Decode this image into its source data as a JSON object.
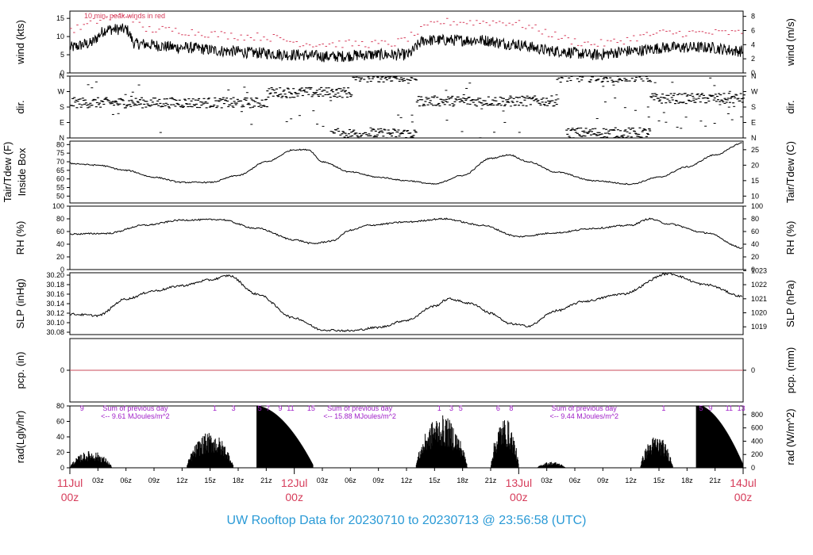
{
  "colors": {
    "line": "#000000",
    "peak": "#d63c5a",
    "zero_line": "#c84b5a",
    "date_label": "#d63c5a",
    "annotation": "#a020c8",
    "footer": "#2a9ad6"
  },
  "footer": {
    "title": "UW Rooftop Data for 20230710  to  20230713 @ 23:56:58  (UTC)"
  },
  "chart_data": {
    "type": "line",
    "x_range_hours": [
      0,
      72
    ],
    "x_ticks": {
      "major": [
        {
          "hour": 0,
          "date": "11Jul",
          "time": "00z"
        },
        {
          "hour": 24,
          "date": "12Jul",
          "time": "00z"
        },
        {
          "hour": 48,
          "date": "13Jul",
          "time": "00z"
        },
        {
          "hour": 72,
          "date": "14Jul",
          "time": "00z"
        }
      ],
      "minor_labels": [
        "03z",
        "06z",
        "09z",
        "12z",
        "15z",
        "18z",
        "21z"
      ]
    },
    "panels": [
      {
        "id": "wind",
        "left_label": "wind (kts)",
        "right_label": "wind (m/s)",
        "ylim": [
          0,
          17
        ],
        "left_ticks": [
          "0",
          "5",
          "10",
          "15"
        ],
        "left_tick_values": [
          0,
          5,
          10,
          15
        ],
        "right_ticks": [
          "0",
          "2",
          "4",
          "6",
          "8"
        ],
        "right_tick_values_left_units": [
          0,
          3.888,
          7.775,
          11.663,
          15.551
        ],
        "annotation": "10 min. peak winds in red",
        "series_keypoints": [
          [
            0,
            7
          ],
          [
            2,
            8
          ],
          [
            4,
            12
          ],
          [
            6,
            12
          ],
          [
            7,
            8
          ],
          [
            12,
            7
          ],
          [
            17,
            6
          ],
          [
            20,
            5.5
          ],
          [
            24,
            5
          ],
          [
            28,
            4.5
          ],
          [
            32,
            5
          ],
          [
            36,
            5
          ],
          [
            38,
            9
          ],
          [
            44,
            9
          ],
          [
            47,
            8
          ],
          [
            52,
            6
          ],
          [
            56,
            5
          ],
          [
            60,
            6
          ],
          [
            64,
            7
          ],
          [
            68,
            7
          ],
          [
            72,
            6
          ]
        ],
        "peak_keypoints": [
          [
            0,
            12
          ],
          [
            4,
            15
          ],
          [
            6,
            16
          ],
          [
            8,
            12
          ],
          [
            20,
            10
          ],
          [
            26,
            8
          ],
          [
            34,
            8
          ],
          [
            40,
            14
          ],
          [
            46,
            14
          ],
          [
            56,
            8
          ],
          [
            64,
            11
          ],
          [
            72,
            11
          ]
        ]
      },
      {
        "id": "dir",
        "left_label": "dir.",
        "right_label": "dir.",
        "ylim": [
          0,
          360
        ],
        "left_ticks": [
          "N",
          "E",
          "S",
          "W",
          "N"
        ],
        "left_tick_values": [
          0,
          90,
          180,
          270,
          360
        ],
        "right_ticks": [
          "N",
          "E",
          "S",
          "W",
          "N"
        ],
        "right_tick_values_left_units": [
          0,
          90,
          180,
          270,
          360
        ],
        "bands": [
          {
            "from_hour": 0,
            "to_hour": 21,
            "dir": 205
          },
          {
            "from_hour": 21,
            "to_hour": 30,
            "dir": 265
          },
          {
            "from_hour": 28,
            "to_hour": 37,
            "dir": 25
          },
          {
            "from_hour": 30,
            "to_hour": 37,
            "dir": 355
          },
          {
            "from_hour": 37,
            "to_hour": 52,
            "dir": 215
          },
          {
            "from_hour": 52,
            "to_hour": 62,
            "dir": 355
          },
          {
            "from_hour": 53,
            "to_hour": 62,
            "dir": 30
          },
          {
            "from_hour": 62,
            "to_hour": 72,
            "dir": 230
          }
        ]
      },
      {
        "id": "temp",
        "left_label": "Tair/Tdew (F)",
        "left_label2": "Inside Box",
        "right_label": "Tair/Tdew (C)",
        "ylim": [
          46,
          82
        ],
        "left_ticks": [
          "50",
          "55",
          "60",
          "65",
          "70",
          "75",
          "80"
        ],
        "left_tick_values": [
          50,
          55,
          60,
          65,
          70,
          75,
          80
        ],
        "right_ticks": [
          "10",
          "15",
          "20",
          "25"
        ],
        "right_tick_values_left_units": [
          50,
          59,
          68,
          77
        ],
        "series_keypoints": [
          [
            0,
            69
          ],
          [
            3,
            68
          ],
          [
            6,
            65
          ],
          [
            9,
            61
          ],
          [
            12,
            58
          ],
          [
            15,
            58
          ],
          [
            18,
            62
          ],
          [
            21,
            70
          ],
          [
            24,
            77
          ],
          [
            25.5,
            77
          ],
          [
            27,
            70
          ],
          [
            30,
            64
          ],
          [
            33,
            61
          ],
          [
            36,
            59
          ],
          [
            39,
            57
          ],
          [
            42,
            62
          ],
          [
            45,
            72
          ],
          [
            47,
            74
          ],
          [
            49,
            70
          ],
          [
            52,
            64
          ],
          [
            56,
            59
          ],
          [
            60,
            57
          ],
          [
            63,
            61
          ],
          [
            66,
            67
          ],
          [
            69,
            74
          ],
          [
            72,
            81
          ]
        ]
      },
      {
        "id": "rh",
        "left_label": "RH (%)",
        "right_label": "RH (%)",
        "ylim": [
          0,
          100
        ],
        "left_ticks": [
          "0",
          "20",
          "40",
          "60",
          "80",
          "100"
        ],
        "left_tick_values": [
          0,
          20,
          40,
          60,
          80,
          100
        ],
        "right_ticks": [
          "0",
          "20",
          "40",
          "60",
          "80",
          "100"
        ],
        "right_tick_values_left_units": [
          0,
          20,
          40,
          60,
          80,
          100
        ],
        "series_keypoints": [
          [
            0,
            56
          ],
          [
            4,
            57
          ],
          [
            8,
            70
          ],
          [
            12,
            78
          ],
          [
            16,
            79
          ],
          [
            20,
            65
          ],
          [
            24,
            47
          ],
          [
            26,
            41
          ],
          [
            28,
            45
          ],
          [
            30,
            62
          ],
          [
            32,
            70
          ],
          [
            36,
            75
          ],
          [
            40,
            80
          ],
          [
            44,
            70
          ],
          [
            48,
            52
          ],
          [
            52,
            58
          ],
          [
            56,
            65
          ],
          [
            60,
            70
          ],
          [
            62,
            80
          ],
          [
            64,
            72
          ],
          [
            68,
            58
          ],
          [
            72,
            34
          ]
        ]
      },
      {
        "id": "slp",
        "left_label": "SLP (inHg)",
        "right_label": "SLP (hPa)",
        "ylim": [
          30.075,
          30.205
        ],
        "left_ticks": [
          "30.08",
          "30.10",
          "30.12",
          "30.14",
          "30.16",
          "30.18",
          "30.20"
        ],
        "left_tick_values": [
          30.08,
          30.1,
          30.12,
          30.14,
          30.16,
          30.18,
          30.2
        ],
        "right_ticks": [
          "1019",
          "1020",
          "1021",
          "1022",
          "1023"
        ],
        "right_tick_values_left_units": [
          30.0913,
          30.1208,
          30.1503,
          30.1799,
          30.2094
        ],
        "series_keypoints": [
          [
            0,
            30.118
          ],
          [
            3,
            30.115
          ],
          [
            6,
            30.15
          ],
          [
            9,
            30.167
          ],
          [
            12,
            30.178
          ],
          [
            15,
            30.19
          ],
          [
            17,
            30.199
          ],
          [
            20,
            30.16
          ],
          [
            24,
            30.11
          ],
          [
            27,
            30.085
          ],
          [
            30,
            30.083
          ],
          [
            33,
            30.09
          ],
          [
            36,
            30.105
          ],
          [
            39,
            30.135
          ],
          [
            40.5,
            30.15
          ],
          [
            43,
            30.14
          ],
          [
            45,
            30.12
          ],
          [
            47,
            30.098
          ],
          [
            49,
            30.093
          ],
          [
            52,
            30.125
          ],
          [
            55,
            30.145
          ],
          [
            59,
            30.16
          ],
          [
            64,
            30.203
          ],
          [
            68,
            30.18
          ],
          [
            72,
            30.155
          ]
        ]
      },
      {
        "id": "pcp",
        "left_label": "pcp. (in)",
        "right_label": "pcp. (mm)",
        "ylim": [
          -1,
          1
        ],
        "left_ticks": [
          "0"
        ],
        "left_tick_values": [
          0
        ],
        "right_ticks": [
          "0"
        ],
        "right_tick_values_left_units": [
          0
        ],
        "zero_line": true
      },
      {
        "id": "rad",
        "left_label": "rad(Lgly/hr)",
        "right_label": "rad (W/m^2)",
        "ylim": [
          0,
          80
        ],
        "left_ticks": [
          "0",
          "20",
          "40",
          "60",
          "80"
        ],
        "left_tick_values": [
          0,
          20,
          40,
          60,
          80
        ],
        "right_ticks": [
          "0",
          "200",
          "400",
          "600",
          "800"
        ],
        "right_tick_values_left_units": [
          0,
          17.2,
          34.4,
          51.6,
          68.8
        ],
        "bursts": [
          {
            "from_hour": 0,
            "to_hour": 4.5,
            "peak": 22
          },
          {
            "from_hour": 12.5,
            "to_hour": 17.5,
            "peak": 46
          },
          {
            "from_hour": 20,
            "to_hour": 26,
            "peak": 80
          },
          {
            "from_hour": 37,
            "to_hour": 42.5,
            "peak": 68
          },
          {
            "from_hour": 45,
            "to_hour": 48,
            "peak": 65
          },
          {
            "from_hour": 50,
            "to_hour": 53,
            "peak": 8
          },
          {
            "from_hour": 61,
            "to_hour": 64.5,
            "peak": 42
          },
          {
            "from_hour": 67,
            "to_hour": 72,
            "peak": 82
          }
        ],
        "hour_markers": [
          {
            "hour": 1.3,
            "label": "9"
          },
          {
            "hour": 15.5,
            "label": "1"
          },
          {
            "hour": 17.5,
            "label": "3"
          },
          {
            "hour": 20.3,
            "label": "5"
          },
          {
            "hour": 21.2,
            "label": "7"
          },
          {
            "hour": 22.5,
            "label": "9"
          },
          {
            "hour": 23.6,
            "label": "11"
          },
          {
            "hour": 25.8,
            "label": "15"
          },
          {
            "hour": 39.5,
            "label": "1"
          },
          {
            "hour": 40.8,
            "label": "3"
          },
          {
            "hour": 41.8,
            "label": "5"
          },
          {
            "hour": 45.8,
            "label": "6"
          },
          {
            "hour": 47.2,
            "label": "8"
          },
          {
            "hour": 63.5,
            "label": "1"
          },
          {
            "hour": 67.5,
            "label": "5"
          },
          {
            "hour": 68.5,
            "label": "9"
          },
          {
            "hour": 70.5,
            "label": "11"
          },
          {
            "hour": 71.8,
            "label": "13"
          }
        ],
        "daily_sums": [
          {
            "hour": 7,
            "line1": "Sum of previous day",
            "line2": "<-- 9.61 MJoules/m^2"
          },
          {
            "hour": 31,
            "line1": "Sum of previous day",
            "line2": "<-- 15.88 MJoules/m^2"
          },
          {
            "hour": 55,
            "line1": "Sum of previous day",
            "line2": "<-- 9.44 MJoules/m^2"
          }
        ]
      }
    ]
  }
}
